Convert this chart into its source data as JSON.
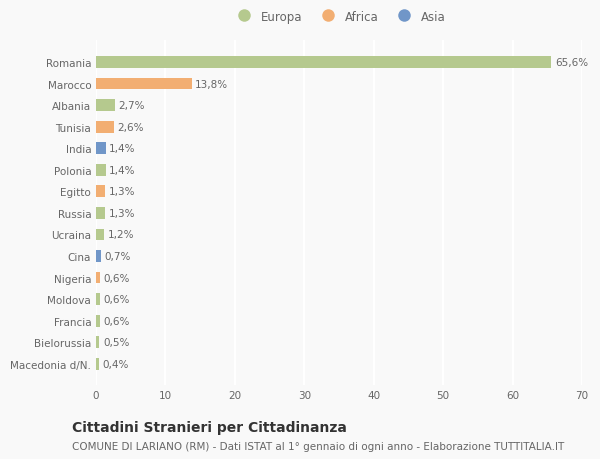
{
  "countries": [
    "Romania",
    "Marocco",
    "Albania",
    "Tunisia",
    "India",
    "Polonia",
    "Egitto",
    "Russia",
    "Ucraina",
    "Cina",
    "Nigeria",
    "Moldova",
    "Francia",
    "Bielorussia",
    "Macedonia d/N."
  ],
  "values": [
    65.6,
    13.8,
    2.7,
    2.6,
    1.4,
    1.4,
    1.3,
    1.3,
    1.2,
    0.7,
    0.6,
    0.6,
    0.6,
    0.5,
    0.4
  ],
  "labels": [
    "65,6%",
    "13,8%",
    "2,7%",
    "2,6%",
    "1,4%",
    "1,4%",
    "1,3%",
    "1,3%",
    "1,2%",
    "0,7%",
    "0,6%",
    "0,6%",
    "0,6%",
    "0,5%",
    "0,4%"
  ],
  "continents": [
    "Europa",
    "Africa",
    "Europa",
    "Africa",
    "Asia",
    "Europa",
    "Africa",
    "Europa",
    "Europa",
    "Asia",
    "Africa",
    "Europa",
    "Europa",
    "Europa",
    "Europa"
  ],
  "colors": {
    "Europa": "#b5c98e",
    "Africa": "#f2ae72",
    "Asia": "#7096c8"
  },
  "bg_color": "#f9f9f9",
  "grid_color": "#ffffff",
  "xlim": [
    0,
    70
  ],
  "xticks": [
    0,
    10,
    20,
    30,
    40,
    50,
    60,
    70
  ],
  "title": "Cittadini Stranieri per Cittadinanza",
  "subtitle": "COMUNE DI LARIANO (RM) - Dati ISTAT al 1° gennaio di ogni anno - Elaborazione TUTTITALIA.IT",
  "title_fontsize": 10,
  "subtitle_fontsize": 7.5,
  "label_fontsize": 7.5,
  "tick_fontsize": 7.5,
  "legend_fontsize": 8.5
}
